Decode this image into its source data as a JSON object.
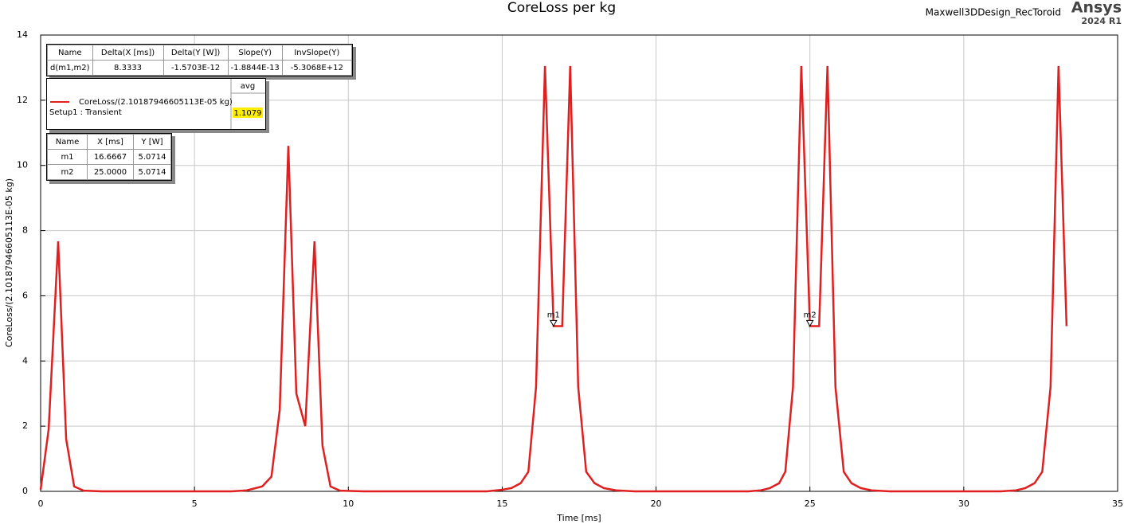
{
  "chart_data": {
    "type": "line",
    "title": "CoreLoss per kg",
    "design_name": "Maxwell3DDesign_RecToroid",
    "brand": "Ansys",
    "version": "2024 R1",
    "x_label": "Time [ms]",
    "y_label": "CoreLoss/(2.10187946605113E-05 kg)",
    "xlim": [
      0,
      35
    ],
    "xticks": [
      0,
      5,
      10,
      15,
      20,
      25,
      30,
      35
    ],
    "ylim": [
      0,
      14
    ],
    "yticks": [
      0,
      2,
      4,
      6,
      8,
      10,
      12,
      14
    ],
    "grid": true,
    "x": [
      0,
      0.26,
      0.57,
      0.83,
      1.09,
      1.4,
      2,
      6.2,
      6.7,
      7.2,
      7.5,
      7.77,
      8.05,
      8.31,
      8.6,
      8.9,
      9.16,
      9.42,
      9.73,
      10.5,
      14.5,
      15.0,
      15.3,
      15.6,
      15.85,
      16.1,
      16.39,
      16.67,
      16.95,
      17.21,
      17.47,
      17.73,
      18.0,
      18.3,
      18.7,
      19.3,
      23,
      23.4,
      23.7,
      24.0,
      24.2,
      24.45,
      24.72,
      25.0,
      25.3,
      25.57,
      25.83,
      26.1,
      26.35,
      26.65,
      27.0,
      27.6,
      31.2,
      31.7,
      32.0,
      32.3,
      32.55,
      32.82,
      33.08,
      33.34
    ],
    "series": [
      {
        "name": "CoreLoss/(2.10187946605113E-05 kg)",
        "setup": "Setup1 : Transient",
        "color": "#e02020",
        "values": [
          0.05,
          1.9,
          7.67,
          1.6,
          0.15,
          0.02,
          0,
          0,
          0.03,
          0.15,
          0.45,
          2.5,
          10.6,
          3.0,
          2.0,
          7.67,
          1.4,
          0.15,
          0.02,
          0,
          0,
          0.05,
          0.1,
          0.25,
          0.6,
          3.2,
          13.05,
          5.07,
          5.07,
          13.05,
          3.2,
          0.6,
          0.25,
          0.1,
          0.03,
          0,
          0,
          0.03,
          0.1,
          0.25,
          0.6,
          3.2,
          13.05,
          5.07,
          5.07,
          13.05,
          3.2,
          0.6,
          0.25,
          0.1,
          0.03,
          0,
          0,
          0.03,
          0.1,
          0.25,
          0.6,
          3.2,
          13.05,
          5.07
        ]
      }
    ],
    "legend_header": "avg",
    "legend_avg": "1.1079",
    "delta_table": {
      "header": [
        "Name",
        "Delta(X [ms])",
        "Delta(Y [W])",
        "Slope(Y)",
        "InvSlope(Y)"
      ],
      "rows": [
        [
          "d(m1,m2)",
          "8.3333",
          "-1.5703E-12",
          "-1.8844E-13",
          "-5.3068E+12"
        ]
      ]
    },
    "marker_header": [
      "Name",
      "X [ms]",
      "Y [W]"
    ],
    "markers": [
      {
        "name": "m1",
        "x": {
          "value": 16.6667,
          "label": "16.6667"
        },
        "y": {
          "value": 5.0714,
          "label": "5.0714"
        }
      },
      {
        "name": "m2",
        "x": {
          "value": 25,
          "label": "25.0000"
        },
        "y": {
          "value": 5.0714,
          "label": "5.0714"
        }
      }
    ]
  }
}
